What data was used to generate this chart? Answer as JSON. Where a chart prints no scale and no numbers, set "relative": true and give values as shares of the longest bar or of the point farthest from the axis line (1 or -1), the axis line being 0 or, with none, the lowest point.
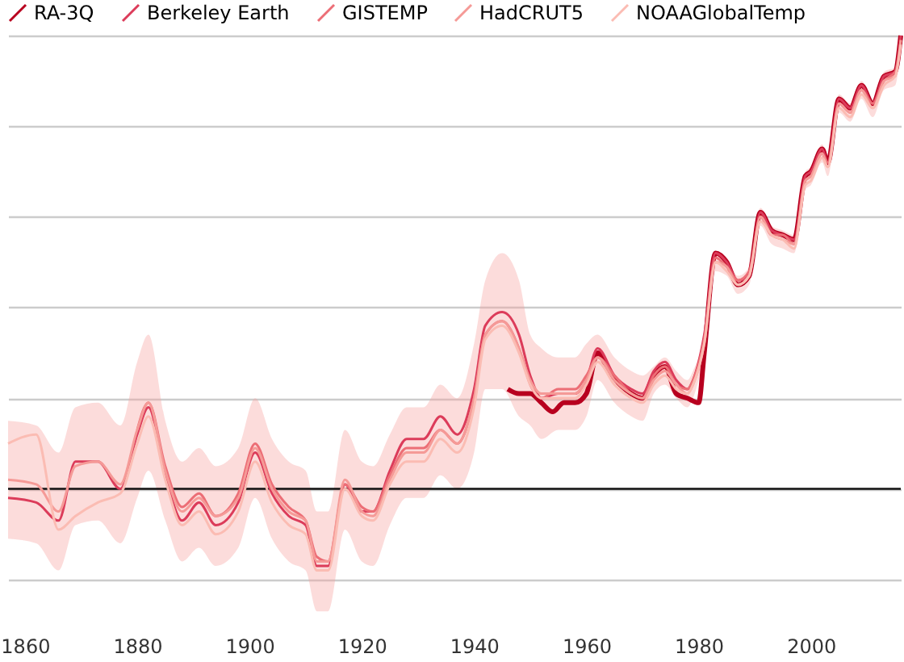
{
  "chart_data": {
    "type": "line",
    "relative": true,
    "grid": "y",
    "legend": "top left",
    "line_style": "solid",
    "marker": "none",
    "xlim": [
      1857,
      2016
    ],
    "xticks": [
      1860,
      1880,
      1900,
      1920,
      1940,
      1960,
      1980,
      2000
    ],
    "x": [
      1857,
      1862,
      1866,
      1869,
      1873,
      1877,
      1880,
      1882,
      1885,
      1888,
      1891,
      1894,
      1898,
      1901,
      1904,
      1907,
      1910,
      1912,
      1914,
      1917,
      1920,
      1922,
      1925,
      1928,
      1931,
      1934,
      1937,
      1940,
      1942,
      1945,
      1948,
      1950,
      1952,
      1955,
      1958,
      1960,
      1962,
      1965,
      1968,
      1970,
      1972,
      1974,
      1976,
      1978,
      1979,
      1981,
      1983,
      1985,
      1987,
      1989,
      1991,
      1993,
      1995,
      1997,
      1999,
      2000,
      2002,
      2003,
      2005,
      2007,
      2009,
      2011,
      2013,
      2015,
      2016
    ],
    "series": [
      {
        "name": "RA-3Q",
        "color": "#b8001f",
        "x": [
          1946,
          1948,
          1950,
          1952,
          1954,
          1956,
          1958,
          1960,
          1962,
          1964,
          1966,
          1968,
          1970,
          1972,
          1974,
          1976,
          1978,
          1980,
          1981,
          1983,
          1985,
          1987,
          1989,
          1991,
          1993,
          1995,
          1997,
          1999,
          2000,
          2002,
          2003,
          2005,
          2007,
          2009,
          2011,
          2013,
          2015,
          2016
        ],
        "values": [
          0.22,
          0.21,
          0.21,
          0.19,
          0.17,
          0.19,
          0.19,
          0.21,
          0.3,
          0.26,
          0.23,
          0.21,
          0.2,
          0.25,
          0.27,
          0.21,
          0.2,
          0.19,
          0.3,
          0.52,
          0.5,
          0.45,
          0.47,
          0.61,
          0.57,
          0.56,
          0.55,
          0.69,
          0.7,
          0.75,
          0.72,
          0.86,
          0.84,
          0.89,
          0.85,
          0.91,
          0.92,
          1.0
        ]
      },
      {
        "name": "Berkeley Earth",
        "color": "#dc3c5a",
        "values": [
          -0.02,
          -0.03,
          -0.07,
          0.06,
          0.06,
          0.0,
          0.12,
          0.18,
          0.03,
          -0.07,
          -0.03,
          -0.08,
          -0.03,
          0.08,
          -0.01,
          -0.06,
          -0.08,
          -0.17,
          -0.17,
          0.01,
          -0.05,
          -0.05,
          0.04,
          0.11,
          0.11,
          0.16,
          0.12,
          0.22,
          0.36,
          0.39,
          0.34,
          0.25,
          0.2,
          0.21,
          0.21,
          0.24,
          0.31,
          0.25,
          0.22,
          0.21,
          0.26,
          0.28,
          0.24,
          0.22,
          0.24,
          0.34,
          0.52,
          0.5,
          0.46,
          0.47,
          0.61,
          0.57,
          0.56,
          0.55,
          0.69,
          0.7,
          0.75,
          0.72,
          0.86,
          0.84,
          0.89,
          0.85,
          0.91,
          0.92,
          1.0
        ]
      },
      {
        "name": "GISTEMP",
        "color": "#ec6e76",
        "x": [
          1880,
          1882,
          1885,
          1888,
          1891,
          1894,
          1898,
          1901,
          1904,
          1907,
          1910,
          1912,
          1914,
          1917,
          1920,
          1922,
          1925,
          1928,
          1931,
          1934,
          1937,
          1940,
          1942,
          1945,
          1948,
          1950,
          1952,
          1955,
          1958,
          1960,
          1962,
          1965,
          1968,
          1970,
          1972,
          1974,
          1976,
          1978,
          1979,
          1981,
          1983,
          1985,
          1987,
          1989,
          1991,
          1993,
          1995,
          1997,
          1999,
          2000,
          2002,
          2003,
          2005,
          2007,
          2009,
          2011,
          2013,
          2015,
          2016
        ],
        "values": [
          0.13,
          0.19,
          0.05,
          -0.04,
          -0.01,
          -0.06,
          -0.01,
          0.1,
          0.01,
          -0.04,
          -0.07,
          -0.15,
          -0.16,
          0.01,
          -0.04,
          -0.05,
          0.03,
          0.09,
          0.09,
          0.13,
          0.1,
          0.2,
          0.34,
          0.37,
          0.31,
          0.23,
          0.2,
          0.22,
          0.22,
          0.25,
          0.29,
          0.25,
          0.21,
          0.2,
          0.25,
          0.27,
          0.23,
          0.22,
          0.24,
          0.33,
          0.51,
          0.49,
          0.46,
          0.48,
          0.6,
          0.56,
          0.56,
          0.54,
          0.68,
          0.69,
          0.74,
          0.72,
          0.85,
          0.83,
          0.88,
          0.85,
          0.9,
          0.92,
          0.99
        ]
      },
      {
        "name": "HadCRUT5",
        "color": "#f59a97",
        "values": [
          0.02,
          0.01,
          -0.05,
          0.05,
          0.06,
          0.01,
          0.13,
          0.19,
          0.04,
          -0.05,
          -0.02,
          -0.06,
          -0.02,
          0.09,
          0.0,
          -0.05,
          -0.07,
          -0.16,
          -0.16,
          0.02,
          -0.05,
          -0.06,
          0.02,
          0.08,
          0.08,
          0.13,
          0.1,
          0.2,
          0.34,
          0.37,
          0.31,
          0.24,
          0.21,
          0.21,
          0.21,
          0.24,
          0.29,
          0.24,
          0.21,
          0.2,
          0.24,
          0.26,
          0.23,
          0.21,
          0.23,
          0.32,
          0.5,
          0.49,
          0.45,
          0.47,
          0.6,
          0.56,
          0.55,
          0.54,
          0.68,
          0.69,
          0.74,
          0.71,
          0.85,
          0.83,
          0.88,
          0.84,
          0.9,
          0.91,
          0.99
        ],
        "upper": [
          0.15,
          0.14,
          0.08,
          0.18,
          0.19,
          0.14,
          0.28,
          0.34,
          0.15,
          0.06,
          0.09,
          0.05,
          0.09,
          0.2,
          0.11,
          0.06,
          0.04,
          -0.05,
          -0.05,
          0.13,
          0.06,
          0.05,
          0.12,
          0.18,
          0.18,
          0.23,
          0.2,
          0.32,
          0.46,
          0.52,
          0.46,
          0.34,
          0.31,
          0.29,
          0.29,
          0.32,
          0.34,
          0.29,
          0.26,
          0.25,
          0.27,
          0.29,
          0.26,
          0.24,
          0.26,
          0.34,
          0.52,
          0.51,
          0.47,
          0.49,
          0.62,
          0.58,
          0.57,
          0.56,
          0.7,
          0.71,
          0.76,
          0.73,
          0.87,
          0.85,
          0.9,
          0.86,
          0.92,
          0.93,
          1.0
        ],
        "lower": [
          -0.11,
          -0.12,
          -0.18,
          -0.08,
          -0.07,
          -0.12,
          -0.02,
          0.04,
          -0.07,
          -0.16,
          -0.13,
          -0.17,
          -0.13,
          -0.02,
          -0.11,
          -0.16,
          -0.18,
          -0.27,
          -0.27,
          -0.09,
          -0.16,
          -0.17,
          -0.08,
          -0.02,
          -0.02,
          0.03,
          0.0,
          0.08,
          0.22,
          0.22,
          0.16,
          0.14,
          0.11,
          0.13,
          0.13,
          0.16,
          0.24,
          0.19,
          0.16,
          0.15,
          0.21,
          0.23,
          0.2,
          0.18,
          0.2,
          0.3,
          0.48,
          0.47,
          0.43,
          0.45,
          0.58,
          0.54,
          0.53,
          0.52,
          0.66,
          0.67,
          0.72,
          0.69,
          0.83,
          0.81,
          0.86,
          0.82,
          0.88,
          0.89,
          0.98
        ]
      },
      {
        "name": "NOAAGlobalTemp",
        "color": "#fbbcb3",
        "values": [
          0.1,
          0.12,
          -0.09,
          -0.06,
          -0.03,
          -0.01,
          0.1,
          0.16,
          0.02,
          -0.08,
          -0.05,
          -0.1,
          -0.05,
          0.06,
          -0.03,
          -0.08,
          -0.1,
          -0.18,
          -0.18,
          0.0,
          -0.06,
          -0.07,
          0.01,
          0.06,
          0.06,
          0.11,
          0.08,
          0.18,
          0.33,
          0.36,
          0.3,
          0.23,
          0.2,
          0.2,
          0.2,
          0.23,
          0.28,
          0.23,
          0.2,
          0.19,
          0.23,
          0.25,
          0.22,
          0.21,
          0.23,
          0.32,
          0.5,
          0.48,
          0.45,
          0.47,
          0.59,
          0.56,
          0.55,
          0.53,
          0.67,
          0.68,
          0.73,
          0.71,
          0.84,
          0.82,
          0.87,
          0.84,
          0.89,
          0.91,
          0.98
        ]
      }
    ]
  }
}
